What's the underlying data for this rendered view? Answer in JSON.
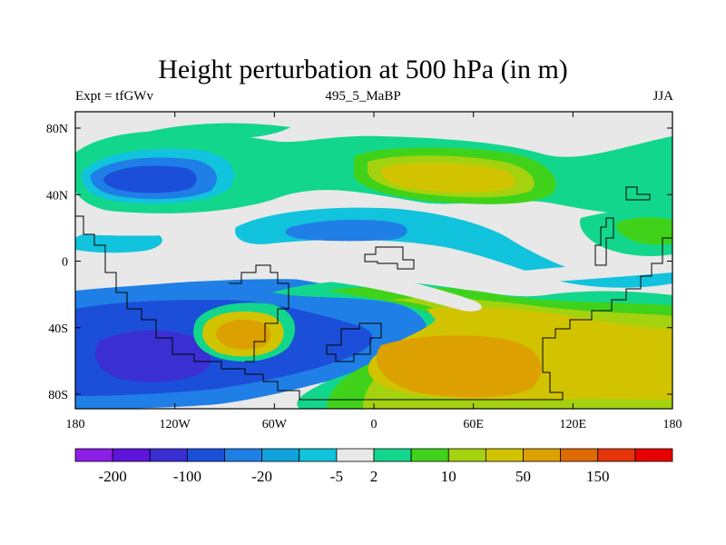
{
  "chart_data": {
    "type": "heatmap",
    "title": "Height perturbation at 500 hPa (in m)",
    "subtitle_left": "Expt = tfGWv",
    "subtitle_center": "495_5_MaBP",
    "subtitle_right": "JJA",
    "x_ticks": [
      "180",
      "120W",
      "60W",
      "0",
      "60E",
      "120E",
      "180"
    ],
    "y_ticks": [
      "80N",
      "40N",
      "0",
      "40S",
      "80S"
    ],
    "colorbar": {
      "colors": [
        "#8c1ee6",
        "#5f14dc",
        "#3a2fd2",
        "#1c4fd9",
        "#1f7fe6",
        "#10a2dc",
        "#11c3dc",
        "#e8e8e8",
        "#12d68c",
        "#40d21a",
        "#a5d20f",
        "#d2c300",
        "#dca000",
        "#e06a00",
        "#e6350a",
        "#e60000"
      ],
      "labels": [
        "-200",
        "-100",
        "-20",
        "-5",
        "2",
        "10",
        "50",
        "150"
      ],
      "label_after_index": [
        0,
        2,
        4,
        6,
        7,
        9,
        11,
        13
      ]
    }
  }
}
